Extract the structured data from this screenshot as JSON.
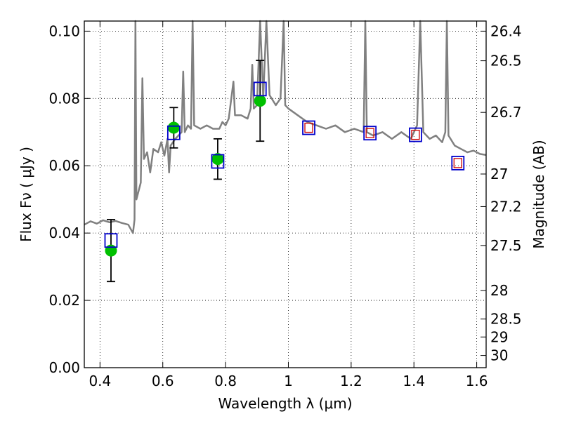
{
  "chart_data": {
    "type": "scatter",
    "xlabel": "Wavelength  λ (μm)",
    "ylabel": "Flux  Fν  ( μJy )",
    "y2label": "Magnitude (AB)",
    "xlim": [
      0.35,
      1.63
    ],
    "ylim": [
      0.0,
      0.103
    ],
    "grid": true,
    "x_ticks": [
      0.4,
      0.6,
      0.8,
      1.0,
      1.2,
      1.4,
      1.6
    ],
    "x_tick_labels": [
      "0.4",
      "0.6",
      "0.8",
      "1",
      "1.2",
      "1.4",
      "1.6"
    ],
    "y_ticks": [
      0.0,
      0.02,
      0.04,
      0.06,
      0.08,
      0.1
    ],
    "y_tick_labels": [
      "0.00",
      "0.02",
      "0.04",
      "0.06",
      "0.08",
      "0.10"
    ],
    "mag_ticks": [
      26.4,
      26.5,
      26.7,
      27,
      27.2,
      27.5,
      28,
      28.5,
      29,
      30
    ],
    "mag_tick_labels": [
      "26.4",
      "26.5",
      "26.7",
      "27",
      "27.2",
      "27.5",
      "28",
      "28.5",
      "29",
      "30"
    ],
    "colors": {
      "spectrum": "#808080",
      "observed": "#00c000",
      "model_box": "#0000cc",
      "model_box_inner": "#cc0000",
      "errorbar": "#000000"
    },
    "spectrum": [
      [
        0.35,
        0.0425
      ],
      [
        0.37,
        0.0435
      ],
      [
        0.39,
        0.0428
      ],
      [
        0.41,
        0.0438
      ],
      [
        0.43,
        0.0432
      ],
      [
        0.45,
        0.0436
      ],
      [
        0.47,
        0.043
      ],
      [
        0.49,
        0.0425
      ],
      [
        0.505,
        0.04
      ],
      [
        0.51,
        0.044
      ],
      [
        0.513,
        0.103
      ],
      [
        0.516,
        0.05
      ],
      [
        0.53,
        0.055
      ],
      [
        0.535,
        0.086
      ],
      [
        0.54,
        0.062
      ],
      [
        0.55,
        0.064
      ],
      [
        0.56,
        0.058
      ],
      [
        0.57,
        0.065
      ],
      [
        0.585,
        0.064
      ],
      [
        0.595,
        0.067
      ],
      [
        0.605,
        0.063
      ],
      [
        0.615,
        0.068
      ],
      [
        0.62,
        0.058
      ],
      [
        0.625,
        0.066
      ],
      [
        0.64,
        0.068
      ],
      [
        0.65,
        0.069
      ],
      [
        0.66,
        0.07
      ],
      [
        0.665,
        0.088
      ],
      [
        0.67,
        0.07
      ],
      [
        0.68,
        0.072
      ],
      [
        0.69,
        0.071
      ],
      [
        0.695,
        0.103
      ],
      [
        0.7,
        0.072
      ],
      [
        0.72,
        0.071
      ],
      [
        0.74,
        0.072
      ],
      [
        0.76,
        0.071
      ],
      [
        0.78,
        0.071
      ],
      [
        0.79,
        0.073
      ],
      [
        0.8,
        0.072
      ],
      [
        0.81,
        0.074
      ],
      [
        0.825,
        0.085
      ],
      [
        0.83,
        0.075
      ],
      [
        0.85,
        0.075
      ],
      [
        0.87,
        0.074
      ],
      [
        0.88,
        0.077
      ],
      [
        0.885,
        0.09
      ],
      [
        0.89,
        0.077
      ],
      [
        0.9,
        0.078
      ],
      [
        0.91,
        0.103
      ],
      [
        0.92,
        0.08
      ],
      [
        0.93,
        0.103
      ],
      [
        0.94,
        0.081
      ],
      [
        0.96,
        0.078
      ],
      [
        0.975,
        0.08
      ],
      [
        0.985,
        0.103
      ],
      [
        0.99,
        0.078
      ],
      [
        1.0,
        0.077
      ],
      [
        1.03,
        0.075
      ],
      [
        1.06,
        0.073
      ],
      [
        1.09,
        0.072
      ],
      [
        1.12,
        0.071
      ],
      [
        1.15,
        0.072
      ],
      [
        1.18,
        0.07
      ],
      [
        1.21,
        0.071
      ],
      [
        1.24,
        0.07
      ],
      [
        1.245,
        0.103
      ],
      [
        1.25,
        0.07
      ],
      [
        1.27,
        0.069
      ],
      [
        1.3,
        0.07
      ],
      [
        1.33,
        0.068
      ],
      [
        1.36,
        0.07
      ],
      [
        1.39,
        0.068
      ],
      [
        1.41,
        0.072
      ],
      [
        1.42,
        0.103
      ],
      [
        1.43,
        0.07
      ],
      [
        1.45,
        0.068
      ],
      [
        1.47,
        0.069
      ],
      [
        1.49,
        0.067
      ],
      [
        1.5,
        0.07
      ],
      [
        1.505,
        0.103
      ],
      [
        1.51,
        0.069
      ],
      [
        1.53,
        0.066
      ],
      [
        1.55,
        0.065
      ],
      [
        1.57,
        0.064
      ],
      [
        1.59,
        0.0645
      ],
      [
        1.61,
        0.0635
      ],
      [
        1.63,
        0.0632
      ]
    ],
    "observed": [
      {
        "x": 0.435,
        "y": 0.0348,
        "yerr": 0.0092
      },
      {
        "x": 0.635,
        "y": 0.0713,
        "yerr": 0.006
      },
      {
        "x": 0.775,
        "y": 0.062,
        "yerr": 0.006
      },
      {
        "x": 0.91,
        "y": 0.0793,
        "yerr": 0.012
      }
    ],
    "model_points": [
      {
        "x": 0.435,
        "y": 0.0378,
        "inner": false
      },
      {
        "x": 0.635,
        "y": 0.0698,
        "inner": false
      },
      {
        "x": 0.775,
        "y": 0.0613,
        "inner": false
      },
      {
        "x": 0.91,
        "y": 0.0828,
        "inner": false
      },
      {
        "x": 1.065,
        "y": 0.0713,
        "inner": true
      },
      {
        "x": 1.26,
        "y": 0.0697,
        "inner": true
      },
      {
        "x": 1.405,
        "y": 0.0692,
        "inner": true
      },
      {
        "x": 1.54,
        "y": 0.0608,
        "inner": true
      }
    ]
  }
}
